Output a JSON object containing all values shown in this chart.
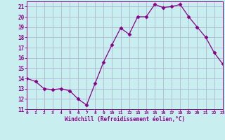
{
  "x": [
    0,
    1,
    2,
    3,
    4,
    5,
    6,
    7,
    8,
    9,
    10,
    11,
    12,
    13,
    14,
    15,
    16,
    17,
    18,
    19,
    20,
    21,
    22,
    23
  ],
  "y": [
    14.0,
    13.7,
    13.0,
    12.9,
    13.0,
    12.8,
    12.0,
    11.4,
    13.5,
    15.6,
    17.3,
    18.9,
    18.3,
    20.0,
    20.0,
    21.2,
    20.9,
    21.0,
    21.2,
    20.0,
    19.0,
    18.0,
    16.5,
    15.4
  ],
  "line_color": "#880088",
  "marker": "D",
  "marker_size": 2.5,
  "bg_color": "#c8eef0",
  "grid_color": "#b0b8d0",
  "xlabel": "Windchill (Refroidissement éolien,°C)",
  "xlim": [
    0,
    23
  ],
  "ylim": [
    11,
    21.5
  ],
  "yticks": [
    11,
    12,
    13,
    14,
    15,
    16,
    17,
    18,
    19,
    20,
    21
  ],
  "xticks": [
    0,
    1,
    2,
    3,
    4,
    5,
    6,
    7,
    8,
    9,
    10,
    11,
    12,
    13,
    14,
    15,
    16,
    17,
    18,
    19,
    20,
    21,
    22,
    23
  ],
  "tick_color": "#880088",
  "label_color": "#880088",
  "font_name": "monospace"
}
